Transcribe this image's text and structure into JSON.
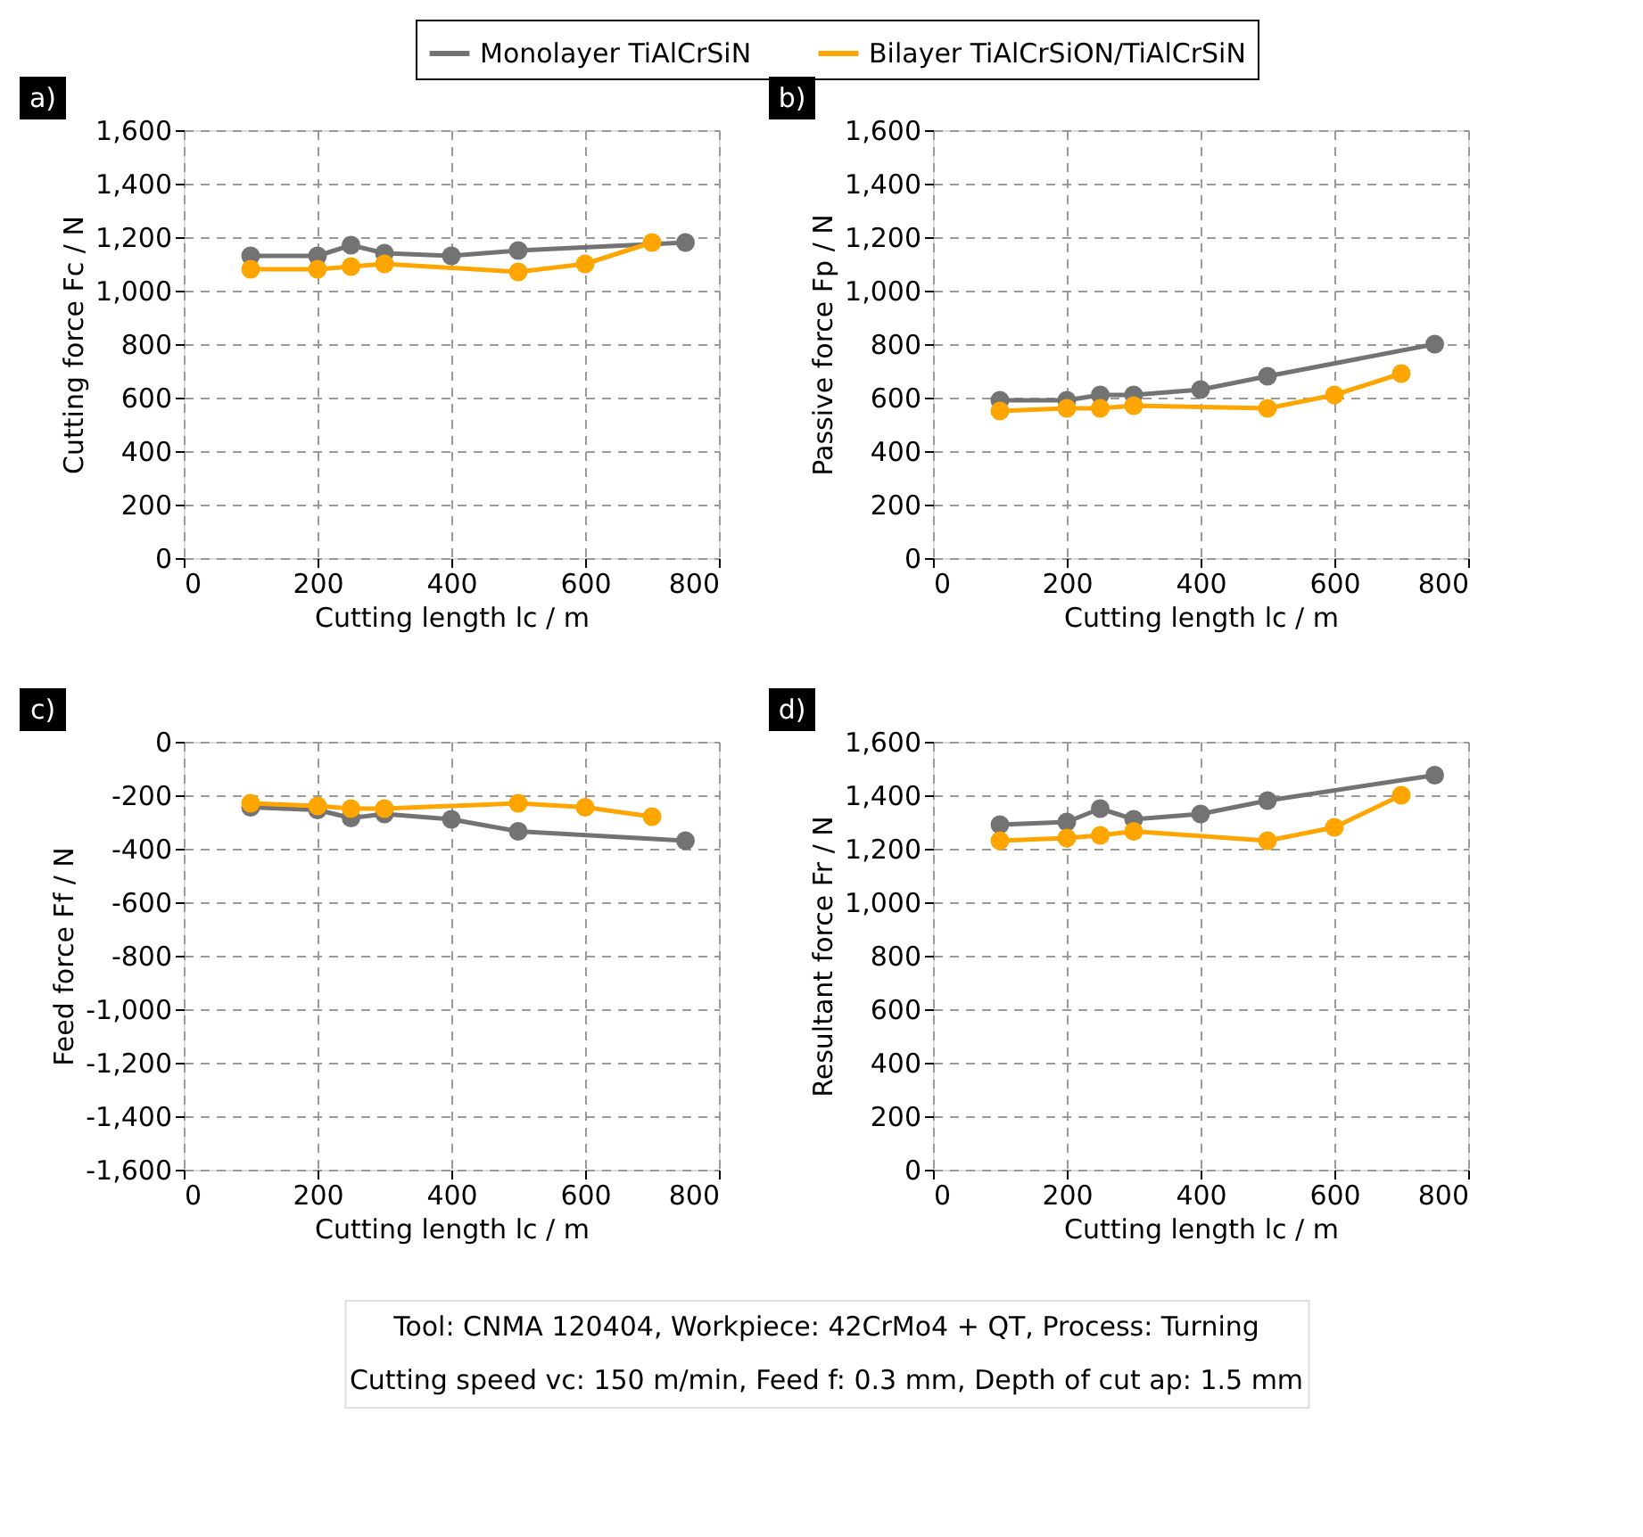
{
  "chart_data": [
    {
      "type": "line",
      "title": "a)",
      "xlabel": "Cutting length lc / m",
      "ylabel": "Cutting force Fc / N",
      "xlim": [
        0,
        800
      ],
      "xticks": [
        0,
        200,
        400,
        600,
        800
      ],
      "ylim": [
        0,
        1600
      ],
      "yticks": [
        0,
        200,
        400,
        600,
        800,
        {
          "value": 1000,
          "label": "1,000"
        },
        {
          "value": 1200,
          "label": "1,200"
        },
        {
          "value": 1400,
          "label": "1,400"
        },
        {
          "value": 1600,
          "label": "1,600"
        }
      ],
      "grid": true,
      "legend": "top",
      "marker": "circle",
      "line_style": "solid",
      "series": [
        {
          "name": "Monolayer TiAlCrSiN",
          "color": "#737373",
          "x": [
            100,
            200,
            250,
            300,
            400,
            500,
            750
          ],
          "values": [
            1130,
            1130,
            1170,
            1140,
            1130,
            1150,
            1180
          ]
        },
        {
          "name": "Bilayer TiAlCrSiON/TiAlCrSiN",
          "color": "#ffa500",
          "x": [
            100,
            200,
            250,
            300,
            500,
            600,
            700
          ],
          "values": [
            1080,
            1080,
            1090,
            1100,
            1070,
            1100,
            1180
          ]
        }
      ]
    },
    {
      "type": "line",
      "title": "b)",
      "xlabel": "Cutting length lc / m",
      "ylabel": "Passive force Fp / N",
      "xlim": [
        0,
        800
      ],
      "xticks": [
        0,
        200,
        400,
        600,
        800
      ],
      "ylim": [
        0,
        1600
      ],
      "yticks": [
        0,
        200,
        400,
        600,
        800,
        {
          "value": 1000,
          "label": "1,000"
        },
        {
          "value": 1200,
          "label": "1,200"
        },
        {
          "value": 1400,
          "label": "1,400"
        },
        {
          "value": 1600,
          "label": "1,600"
        }
      ],
      "grid": true,
      "marker": "circle",
      "line_style": "solid",
      "series": [
        {
          "color": "#737373",
          "x": [
            100,
            200,
            250,
            300,
            400,
            500,
            750
          ],
          "values": [
            590,
            590,
            610,
            610,
            630,
            680,
            800
          ]
        },
        {
          "color": "#ffa500",
          "x": [
            100,
            200,
            250,
            300,
            500,
            600,
            700
          ],
          "values": [
            550,
            560,
            560,
            570,
            560,
            610,
            690
          ]
        }
      ]
    },
    {
      "type": "line",
      "title": "c)",
      "xlabel": "Cutting length lc / m",
      "ylabel": "Feed force Ff / N",
      "xlim": [
        0,
        800
      ],
      "xticks": [
        0,
        200,
        400,
        600,
        800
      ],
      "ylim": [
        -1600,
        0
      ],
      "yticks": [
        {
          "value": -1600,
          "label": "-1,600"
        },
        {
          "value": -1400,
          "label": "-1,400"
        },
        {
          "value": -1200,
          "label": "-1,200"
        },
        {
          "value": -1000,
          "label": "-1,000"
        },
        -800,
        -600,
        -400,
        -200,
        0
      ],
      "grid": true,
      "marker": "circle",
      "line_style": "solid",
      "series": [
        {
          "color": "#737373",
          "x": [
            100,
            200,
            250,
            300,
            400,
            500,
            750
          ],
          "values": [
            -245,
            -255,
            -285,
            -270,
            -290,
            -335,
            -370
          ]
        },
        {
          "color": "#ffa500",
          "x": [
            100,
            200,
            250,
            300,
            500,
            600,
            700
          ],
          "values": [
            -230,
            -240,
            -250,
            -250,
            -230,
            -245,
            -280
          ]
        }
      ]
    },
    {
      "type": "line",
      "title": "d)",
      "xlabel": "Cutting length lc / m",
      "ylabel": "Resultant force Fr / N",
      "xlim": [
        0,
        800
      ],
      "xticks": [
        0,
        200,
        400,
        600,
        800
      ],
      "ylim": [
        0,
        1600
      ],
      "yticks": [
        0,
        200,
        400,
        600,
        800,
        {
          "value": 1000,
          "label": "1,000"
        },
        {
          "value": 1200,
          "label": "1,200"
        },
        {
          "value": 1400,
          "label": "1,400"
        },
        {
          "value": 1600,
          "label": "1,600"
        }
      ],
      "grid": true,
      "marker": "circle",
      "line_style": "solid",
      "annotations": [
        "Tool: CNMA 120404, Workpiece: 42CrMo4 + QT, Process: Turning",
        "Cutting speed vc: 150 m/min, Feed f: 0.3 mm, Depth of cut ap: 1.5 mm"
      ],
      "series": [
        {
          "color": "#737373",
          "x": [
            100,
            200,
            250,
            300,
            400,
            500,
            750
          ],
          "values": [
            1290,
            1300,
            1350,
            1310,
            1330,
            1380,
            1475
          ]
        },
        {
          "color": "#ffa500",
          "x": [
            100,
            200,
            250,
            300,
            500,
            600,
            700
          ],
          "values": [
            1230,
            1240,
            1250,
            1265,
            1230,
            1280,
            1400
          ]
        }
      ]
    }
  ]
}
